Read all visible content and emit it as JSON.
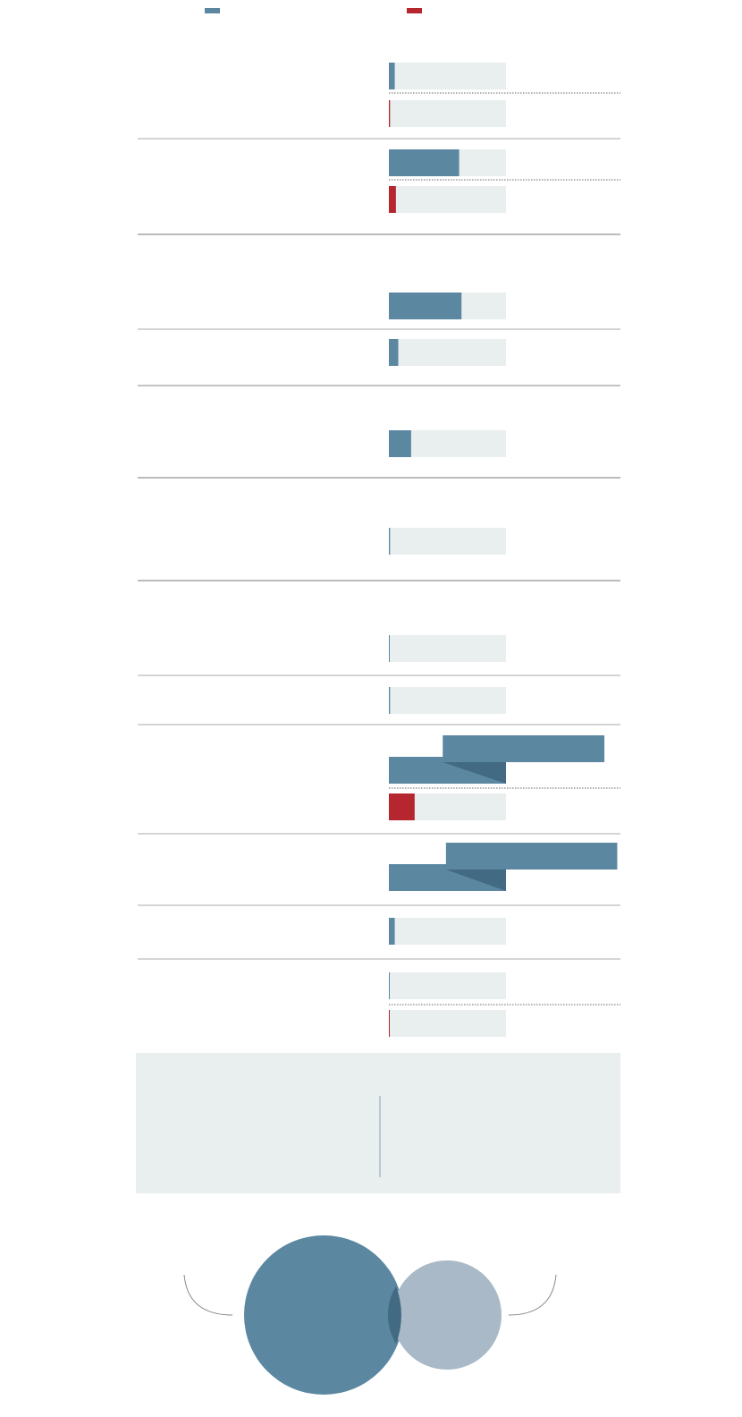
{
  "chart_data": {
    "type": "bar",
    "legend": [
      {
        "color": "#5b87a0"
      },
      {
        "color": "#b5262f"
      }
    ],
    "bars": [
      {
        "color": "#5b87a0",
        "value": 5
      },
      {
        "color": "#b5262f",
        "value": 1
      },
      {
        "color": "#5b87a0",
        "value": 60
      },
      {
        "color": "#b5262f",
        "value": 6
      },
      {
        "color": "#5b87a0",
        "value": 62
      },
      {
        "color": "#5b87a0",
        "value": 8
      },
      {
        "color": "#5b87a0",
        "value": 19
      },
      {
        "color": "#5b87a0",
        "value": 1
      },
      {
        "color": "#5b87a0",
        "value": 0.5
      },
      {
        "color": "#5b87a0",
        "value": 1
      },
      {
        "color": "#5b87a0",
        "value": 184
      },
      {
        "color": "#b5262f",
        "value": 22
      },
      {
        "color": "#5b87a0",
        "value": 195
      },
      {
        "color": "#5b87a0",
        "value": 5
      },
      {
        "color": "#5b87a0",
        "value": 0.5
      },
      {
        "color": "#b5262f",
        "value": 0.5
      }
    ],
    "xlim": [
      0,
      100
    ]
  }
}
